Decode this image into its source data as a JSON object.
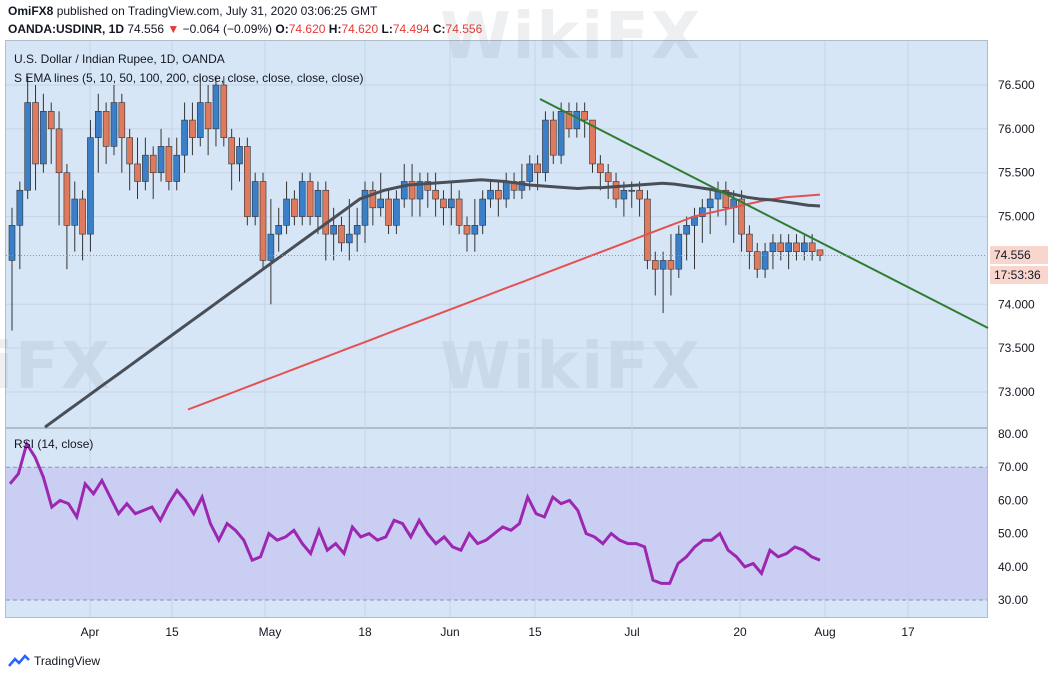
{
  "header": {
    "publisher": "OmiFX8",
    "published_text": "published on TradingView.com, July 31, 2020 03:06:25 GMT",
    "symbol": "OANDA:USDINR, 1D",
    "last": "74.556",
    "change": "−0.064 (−0.09%)",
    "open_label": "O:",
    "open": "74.620",
    "high_label": "H:",
    "high": "74.620",
    "low_label": "L:",
    "low": "74.494",
    "close_label": "C:",
    "close": "74.556"
  },
  "legend": {
    "title": "U.S. Dollar / Indian Rupee, 1D, OANDA",
    "ema": "S EMA lines (5, 10, 50, 100, 200, close, close, close, close, close)",
    "rsi": "RSI (14, close)"
  },
  "price_axis": {
    "ticks": [
      "76.500",
      "76.000",
      "75.500",
      "75.000",
      "74.000",
      "73.500",
      "73.000"
    ],
    "current_price": "74.556",
    "countdown": "17:53:36"
  },
  "rsi_axis": {
    "ticks": [
      "80.00",
      "70.00",
      "60.00",
      "50.00",
      "40.00",
      "30.00"
    ]
  },
  "time_axis": {
    "labels": [
      "Apr",
      "15",
      "May",
      "18",
      "Jun",
      "15",
      "Jul",
      "20",
      "Aug",
      "17"
    ]
  },
  "footer": {
    "brand": "TradingView"
  },
  "watermark": "WikiFX",
  "colors": {
    "up": "#3c7fc9",
    "down": "#e07a5f",
    "ema_dark": "#4a4f57",
    "ema_red": "#e55050",
    "trend": "#2e7d32",
    "rsi": "#9c27b0",
    "rsi_band": "#c7c5f2"
  },
  "chart_data": [
    {
      "type": "candlestick",
      "title": "U.S. Dollar / Indian Rupee, 1D, OANDA",
      "ylim": [
        72.6,
        76.9
      ],
      "candles": [
        [
          74.5,
          74.9,
          75.1,
          73.7
        ],
        [
          74.9,
          75.3,
          75.4,
          74.4
        ],
        [
          75.3,
          76.3,
          76.6,
          75.2
        ],
        [
          76.3,
          75.6,
          76.5,
          75.3
        ],
        [
          75.6,
          76.2,
          76.4,
          75.5
        ],
        [
          76.2,
          76.0,
          76.3,
          75.6
        ],
        [
          76.0,
          75.5,
          76.2,
          74.9
        ],
        [
          75.5,
          74.9,
          75.6,
          74.4
        ],
        [
          74.9,
          75.2,
          75.4,
          74.6
        ],
        [
          75.2,
          74.8,
          75.3,
          74.5
        ],
        [
          74.8,
          75.9,
          76.1,
          74.6
        ],
        [
          75.9,
          76.2,
          76.4,
          75.5
        ],
        [
          76.2,
          75.8,
          76.3,
          75.6
        ],
        [
          75.8,
          76.3,
          76.5,
          75.7
        ],
        [
          76.3,
          75.9,
          76.4,
          75.5
        ],
        [
          75.9,
          75.6,
          76.0,
          75.3
        ],
        [
          75.6,
          75.4,
          75.9,
          75.2
        ],
        [
          75.4,
          75.7,
          75.9,
          75.3
        ],
        [
          75.7,
          75.5,
          75.8,
          75.2
        ],
        [
          75.5,
          75.8,
          76.0,
          75.4
        ],
        [
          75.8,
          75.4,
          75.9,
          75.3
        ],
        [
          75.4,
          75.7,
          75.9,
          75.3
        ],
        [
          75.7,
          76.1,
          76.3,
          75.5
        ],
        [
          76.1,
          75.9,
          76.3,
          75.7
        ],
        [
          75.9,
          76.3,
          76.6,
          75.8
        ],
        [
          76.3,
          76.0,
          76.5,
          75.7
        ],
        [
          76.0,
          76.5,
          76.6,
          75.8
        ],
        [
          76.5,
          75.9,
          76.6,
          75.8
        ],
        [
          75.9,
          75.6,
          76.0,
          75.3
        ],
        [
          75.6,
          75.8,
          75.9,
          75.4
        ],
        [
          75.8,
          75.0,
          75.9,
          74.9
        ],
        [
          75.0,
          75.4,
          75.5,
          74.9
        ],
        [
          75.4,
          74.5,
          75.5,
          74.4
        ],
        [
          74.5,
          74.8,
          75.2,
          74.0
        ],
        [
          74.8,
          74.9,
          75.1,
          74.6
        ],
        [
          74.9,
          75.2,
          75.4,
          74.8
        ],
        [
          75.2,
          75.0,
          75.3,
          74.9
        ],
        [
          75.0,
          75.4,
          75.5,
          74.9
        ],
        [
          75.4,
          75.0,
          75.5,
          74.9
        ],
        [
          75.0,
          75.3,
          75.4,
          74.8
        ],
        [
          75.3,
          74.8,
          75.4,
          74.5
        ],
        [
          74.8,
          74.9,
          75.1,
          74.5
        ],
        [
          74.9,
          74.7,
          75.0,
          74.6
        ],
        [
          74.7,
          74.8,
          75.2,
          74.5
        ],
        [
          74.8,
          74.9,
          75.1,
          74.6
        ],
        [
          74.9,
          75.3,
          75.4,
          74.7
        ],
        [
          75.3,
          75.1,
          75.4,
          74.9
        ],
        [
          75.1,
          75.2,
          75.5,
          75.0
        ],
        [
          75.2,
          74.9,
          75.3,
          74.8
        ],
        [
          74.9,
          75.2,
          75.3,
          74.8
        ],
        [
          75.2,
          75.4,
          75.6,
          75.1
        ],
        [
          75.4,
          75.2,
          75.6,
          75.0
        ],
        [
          75.2,
          75.4,
          75.5,
          75.0
        ],
        [
          75.4,
          75.3,
          75.5,
          75.1
        ],
        [
          75.3,
          75.2,
          75.5,
          75.0
        ],
        [
          75.2,
          75.1,
          75.3,
          74.9
        ],
        [
          75.1,
          75.2,
          75.4,
          74.9
        ],
        [
          75.2,
          74.9,
          75.3,
          74.8
        ],
        [
          74.9,
          74.8,
          75.0,
          74.6
        ],
        [
          74.8,
          74.9,
          75.2,
          74.6
        ],
        [
          74.9,
          75.2,
          75.3,
          74.8
        ],
        [
          75.2,
          75.3,
          75.4,
          75.1
        ],
        [
          75.3,
          75.2,
          75.4,
          75.0
        ],
        [
          75.2,
          75.4,
          75.5,
          75.1
        ],
        [
          75.4,
          75.3,
          75.5,
          75.2
        ],
        [
          75.3,
          75.4,
          75.6,
          75.2
        ],
        [
          75.4,
          75.6,
          75.7,
          75.3
        ],
        [
          75.6,
          75.5,
          75.7,
          75.3
        ],
        [
          75.5,
          76.1,
          76.2,
          75.4
        ],
        [
          76.1,
          75.7,
          76.2,
          75.6
        ],
        [
          75.7,
          76.2,
          76.3,
          75.6
        ],
        [
          76.2,
          76.0,
          76.3,
          75.9
        ],
        [
          76.0,
          76.2,
          76.3,
          75.9
        ],
        [
          76.2,
          76.1,
          76.3,
          75.9
        ],
        [
          76.1,
          75.6,
          76.1,
          75.5
        ],
        [
          75.6,
          75.5,
          75.7,
          75.3
        ],
        [
          75.5,
          75.4,
          75.6,
          75.2
        ],
        [
          75.4,
          75.2,
          75.5,
          75.1
        ],
        [
          75.2,
          75.3,
          75.4,
          75.0
        ],
        [
          75.3,
          75.3,
          75.4,
          75.1
        ],
        [
          75.3,
          75.2,
          75.4,
          75.0
        ],
        [
          75.2,
          74.5,
          75.3,
          74.4
        ],
        [
          74.5,
          74.4,
          74.6,
          74.1
        ],
        [
          74.4,
          74.5,
          74.6,
          73.9
        ],
        [
          74.5,
          74.4,
          74.8,
          74.1
        ],
        [
          74.4,
          74.8,
          74.9,
          74.3
        ],
        [
          74.8,
          74.9,
          75.0,
          74.5
        ],
        [
          74.9,
          75.0,
          75.1,
          74.4
        ],
        [
          75.0,
          75.1,
          75.2,
          74.7
        ],
        [
          75.1,
          75.2,
          75.3,
          74.8
        ],
        [
          75.2,
          75.3,
          75.4,
          75.0
        ],
        [
          75.3,
          75.1,
          75.4,
          74.9
        ],
        [
          75.1,
          75.2,
          75.3,
          74.7
        ],
        [
          75.2,
          74.8,
          75.3,
          74.6
        ],
        [
          74.8,
          74.6,
          74.9,
          74.4
        ],
        [
          74.6,
          74.4,
          74.7,
          74.3
        ],
        [
          74.4,
          74.6,
          74.7,
          74.3
        ],
        [
          74.6,
          74.7,
          74.8,
          74.4
        ],
        [
          74.7,
          74.6,
          74.8,
          74.5
        ],
        [
          74.6,
          74.7,
          74.8,
          74.4
        ],
        [
          74.7,
          74.6,
          74.8,
          74.5
        ],
        [
          74.6,
          74.7,
          74.8,
          74.5
        ],
        [
          74.7,
          74.6,
          74.8,
          74.5
        ],
        [
          74.62,
          74.556,
          74.62,
          74.494
        ]
      ],
      "ema_dark": [
        72.6,
        72.7,
        72.8,
        72.9,
        73.0,
        73.1,
        73.2,
        73.3,
        73.4,
        73.5,
        73.6,
        73.7,
        73.8,
        73.9,
        74.0,
        74.1,
        74.2,
        74.3,
        74.4,
        74.5,
        74.6,
        74.7,
        74.8,
        74.9,
        75.0,
        75.1,
        75.2,
        75.25,
        75.3,
        75.33,
        75.36,
        75.37,
        75.38,
        75.39,
        75.4,
        75.41,
        75.42,
        75.41,
        75.4,
        75.38,
        75.36,
        75.35,
        75.34,
        75.33,
        75.32,
        75.33,
        75.33,
        75.34,
        75.35,
        75.36,
        75.37,
        75.38,
        75.37,
        75.35,
        75.33,
        75.31,
        75.28,
        75.25,
        75.22,
        75.2,
        75.19,
        75.17,
        75.15,
        75.13,
        75.12
      ],
      "ema_red": [
        72.8,
        72.85,
        72.9,
        72.95,
        73.0,
        73.05,
        73.1,
        73.15,
        73.2,
        73.25,
        73.3,
        73.35,
        73.4,
        73.45,
        73.5,
        73.55,
        73.6,
        73.65,
        73.7,
        73.75,
        73.8,
        73.85,
        73.9,
        73.95,
        74.0,
        74.05,
        74.1,
        74.15,
        74.2,
        74.25,
        74.3,
        74.35,
        74.4,
        74.45,
        74.5,
        74.55,
        74.6,
        74.65,
        74.7,
        74.75,
        74.8,
        74.85,
        74.9,
        74.95,
        75.0,
        75.03,
        75.06,
        75.09,
        75.12,
        75.15,
        75.18,
        75.2,
        75.22,
        75.23,
        75.24,
        75.25
      ]
    },
    {
      "type": "line",
      "title": "RSI (14, close)",
      "ylim": [
        25,
        82
      ],
      "bands": [
        30,
        70
      ],
      "values": [
        65,
        68,
        77,
        73,
        67,
        58,
        60,
        59,
        55,
        65,
        62,
        66,
        61,
        56,
        59,
        56,
        57,
        58,
        54,
        59,
        63,
        60,
        56,
        61,
        53,
        48,
        53,
        51,
        48,
        42,
        43,
        50,
        48,
        49,
        51,
        47,
        44,
        51,
        45,
        47,
        44,
        52,
        49,
        50,
        48,
        49,
        54,
        53,
        49,
        54,
        50,
        47,
        49,
        46,
        45,
        50,
        47,
        48,
        50,
        52,
        51,
        53,
        61,
        56,
        55,
        61,
        59,
        60,
        57,
        50,
        49,
        47,
        50,
        48,
        47,
        47,
        46,
        36,
        35,
        35,
        41,
        43,
        46,
        48,
        48,
        50,
        45,
        43,
        40,
        41,
        38,
        45,
        43,
        44,
        46,
        45,
        43,
        42
      ]
    }
  ]
}
